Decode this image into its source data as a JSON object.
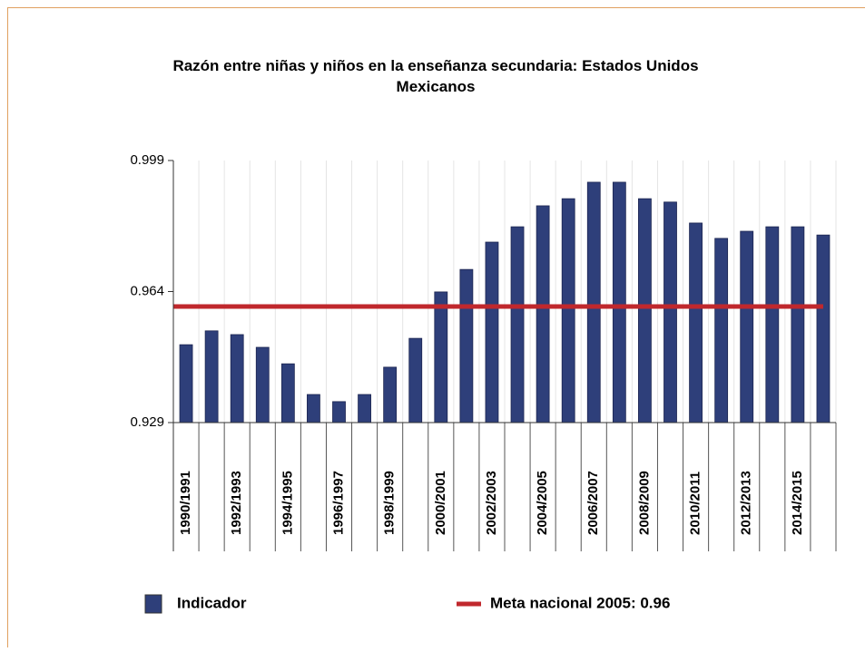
{
  "chart_data": {
    "type": "bar",
    "title": "Razón entre niñas y niños en la enseñanza secundaria: Estados Unidos Mexicanos",
    "categories": [
      "1990/1991",
      null,
      "1992/1993",
      null,
      "1994/1995",
      null,
      "1996/1997",
      null,
      "1998/1999",
      null,
      "2000/2001",
      null,
      "2002/2003",
      null,
      "2004/2005",
      null,
      "2006/2007",
      null,
      "2008/2009",
      null,
      "2010/2011",
      null,
      "2012/2013",
      null,
      "2014/2015",
      null
    ],
    "series": [
      {
        "name": "Indicador",
        "color": "#2e3f7a",
        "values": [
          0.9498,
          0.9535,
          0.9525,
          0.9491,
          0.9447,
          0.9365,
          0.9346,
          0.9365,
          0.9438,
          0.9515,
          0.9639,
          0.9699,
          0.9772,
          0.9813,
          0.9869,
          0.9888,
          0.9932,
          0.9932,
          0.9888,
          0.9879,
          0.9823,
          0.9782,
          0.9801,
          0.9813,
          0.9813,
          0.9791
        ]
      }
    ],
    "reference_line": {
      "name": "Meta nacional 2005: 0.96",
      "value": 0.96,
      "color": "#c0282d"
    },
    "ylim": [
      0.929,
      0.999
    ],
    "yticks": [
      0.929,
      0.964,
      0.999
    ]
  }
}
